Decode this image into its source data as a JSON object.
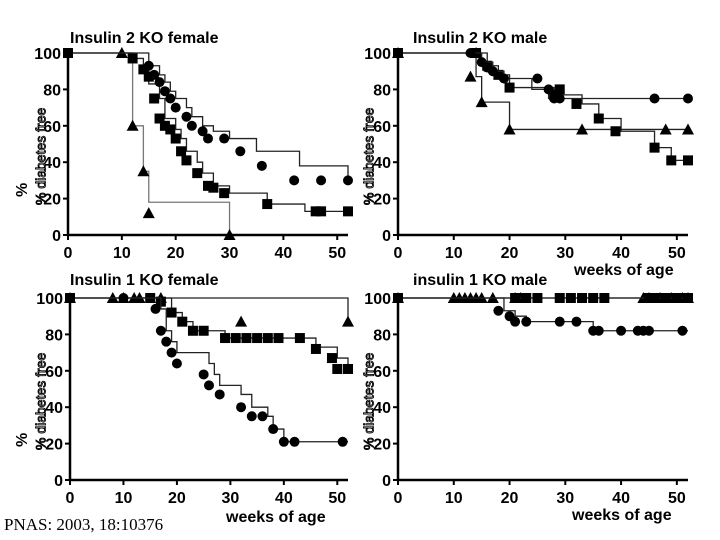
{
  "citation": "PNAS: 2003, 18:10376",
  "chart_data": [
    {
      "type": "line",
      "title": "Insulin 2 KO female",
      "xlabel": "",
      "ylabel": "%",
      "ylabel_rotated": "% diabetes free",
      "xlim": [
        0,
        52
      ],
      "ylim": [
        0,
        100
      ],
      "xticks": [
        0,
        10,
        20,
        30,
        40,
        50
      ],
      "yticks": [
        0,
        20,
        40,
        60,
        80,
        100
      ],
      "series": [
        {
          "marker": "triangle",
          "step_x": [
            0,
            10,
            12,
            14,
            15,
            30
          ],
          "step_y": [
            100,
            100,
            60,
            35,
            18,
            0
          ],
          "points": [
            [
              10,
              100
            ],
            [
              12,
              60
            ],
            [
              14,
              35
            ],
            [
              15,
              12
            ],
            [
              30,
              0
            ]
          ]
        },
        {
          "marker": "square",
          "step_x": [
            0,
            11,
            12,
            14,
            15,
            17,
            18,
            20,
            21,
            22,
            24,
            25,
            27,
            30,
            37,
            44,
            52
          ],
          "step_y": [
            100,
            100,
            97,
            91,
            83,
            75,
            64,
            58,
            53,
            46,
            40,
            34,
            27,
            23,
            17,
            13,
            13
          ],
          "points": [
            [
              0,
              100
            ],
            [
              12,
              97
            ],
            [
              14,
              91
            ],
            [
              15,
              87
            ],
            [
              16,
              75
            ],
            [
              17,
              64
            ],
            [
              18,
              60
            ],
            [
              19,
              58
            ],
            [
              20,
              53
            ],
            [
              21,
              46
            ],
            [
              22,
              41
            ],
            [
              24,
              34
            ],
            [
              26,
              27
            ],
            [
              27,
              26
            ],
            [
              29,
              23
            ],
            [
              37,
              17
            ],
            [
              46,
              13
            ],
            [
              47,
              13
            ],
            [
              52,
              13
            ]
          ]
        },
        {
          "marker": "circle",
          "step_x": [
            0,
            14,
            15,
            17,
            18,
            19,
            20,
            22,
            23,
            25,
            27,
            30,
            35,
            43,
            52
          ],
          "step_y": [
            100,
            100,
            93,
            88,
            84,
            79,
            75,
            70,
            65,
            60,
            57,
            53,
            46,
            38,
            30
          ],
          "points": [
            [
              0,
              100
            ],
            [
              15,
              93
            ],
            [
              16,
              88
            ],
            [
              17,
              84
            ],
            [
              18,
              79
            ],
            [
              19,
              75
            ],
            [
              20,
              70
            ],
            [
              22,
              65
            ],
            [
              23,
              60
            ],
            [
              25,
              57
            ],
            [
              26,
              53
            ],
            [
              29,
              53
            ],
            [
              32,
              46
            ],
            [
              36,
              38
            ],
            [
              42,
              30
            ],
            [
              47,
              30
            ],
            [
              52,
              30
            ]
          ]
        }
      ]
    },
    {
      "type": "line",
      "title": "Insulin 2 KO male",
      "xlabel": "weeks of age",
      "ylabel": "%",
      "ylabel_rotated": "% diabetes free",
      "xlim": [
        0,
        52
      ],
      "ylim": [
        0,
        100
      ],
      "xticks": [
        0,
        10,
        20,
        30,
        40,
        50
      ],
      "yticks": [
        0,
        20,
        40,
        60,
        80,
        100
      ],
      "series": [
        {
          "marker": "triangle",
          "step_x": [
            0,
            13,
            14,
            15,
            20,
            52
          ],
          "step_y": [
            100,
            100,
            87,
            73,
            58,
            58
          ],
          "points": [
            [
              0,
              100
            ],
            [
              13,
              87
            ],
            [
              14,
              100
            ],
            [
              15,
              73
            ],
            [
              20,
              58
            ],
            [
              33,
              58
            ],
            [
              48,
              58
            ],
            [
              52,
              58
            ]
          ]
        },
        {
          "marker": "square",
          "step_x": [
            0,
            13,
            16,
            18,
            20,
            28,
            33,
            36,
            40,
            46,
            49,
            52
          ],
          "step_y": [
            100,
            100,
            93,
            88,
            81,
            77,
            72,
            64,
            57,
            48,
            41,
            41
          ],
          "points": [
            [
              0,
              100
            ],
            [
              14,
              100
            ],
            [
              16,
              93
            ],
            [
              18,
              88
            ],
            [
              20,
              81
            ],
            [
              28,
              77
            ],
            [
              29,
              80
            ],
            [
              32,
              72
            ],
            [
              36,
              64
            ],
            [
              39,
              57
            ],
            [
              46,
              48
            ],
            [
              49,
              41
            ],
            [
              52,
              41
            ]
          ]
        },
        {
          "marker": "circle",
          "step_x": [
            0,
            14,
            15,
            17,
            19,
            24,
            27,
            30,
            52
          ],
          "step_y": [
            100,
            100,
            95,
            90,
            86,
            80,
            75,
            75,
            75
          ],
          "points": [
            [
              0,
              100
            ],
            [
              13,
              100
            ],
            [
              15,
              95
            ],
            [
              16,
              92
            ],
            [
              17,
              90
            ],
            [
              19,
              86
            ],
            [
              25,
              86
            ],
            [
              27,
              80
            ],
            [
              28,
              75
            ],
            [
              29,
              75
            ],
            [
              46,
              75
            ],
            [
              52,
              75
            ]
          ]
        }
      ]
    },
    {
      "type": "line",
      "title": "Insulin 1 KO female",
      "xlabel": "weeks of age",
      "ylabel": "%",
      "ylabel_rotated": "% diabetes free",
      "xlim": [
        0,
        52
      ],
      "ylim": [
        0,
        100
      ],
      "xticks": [
        0,
        10,
        20,
        30,
        40,
        50
      ],
      "yticks": [
        0,
        20,
        40,
        60,
        80,
        100
      ],
      "series": [
        {
          "marker": "triangle",
          "step_x": [
            0,
            32,
            52
          ],
          "step_y": [
            100,
            100,
            87
          ],
          "points": [
            [
              0,
              100
            ],
            [
              8,
              100
            ],
            [
              10,
              100
            ],
            [
              12,
              100
            ],
            [
              13,
              100
            ],
            [
              17,
              100
            ],
            [
              32,
              87
            ],
            [
              52,
              87
            ]
          ]
        },
        {
          "marker": "square",
          "step_x": [
            0,
            17,
            19,
            21,
            23,
            29,
            43,
            46,
            50,
            52
          ],
          "step_y": [
            100,
            100,
            92,
            87,
            82,
            78,
            78,
            73,
            67,
            61
          ],
          "points": [
            [
              0,
              100
            ],
            [
              15,
              100
            ],
            [
              17,
              98
            ],
            [
              19,
              92
            ],
            [
              21,
              87
            ],
            [
              23,
              82
            ],
            [
              25,
              82
            ],
            [
              29,
              78
            ],
            [
              31,
              78
            ],
            [
              33,
              78
            ],
            [
              35,
              78
            ],
            [
              37,
              78
            ],
            [
              39,
              78
            ],
            [
              43,
              78
            ],
            [
              46,
              72
            ],
            [
              49,
              67
            ],
            [
              50,
              61
            ],
            [
              52,
              61
            ]
          ]
        },
        {
          "marker": "circle",
          "step_x": [
            0,
            16,
            17,
            18,
            19,
            20,
            26,
            27,
            28,
            32,
            34,
            37,
            38,
            40,
            52
          ],
          "step_y": [
            100,
            100,
            94,
            82,
            76,
            70,
            64,
            58,
            52,
            47,
            40,
            35,
            28,
            21,
            21
          ],
          "points": [
            [
              0,
              100
            ],
            [
              10,
              100
            ],
            [
              16,
              94
            ],
            [
              17,
              82
            ],
            [
              18,
              76
            ],
            [
              19,
              70
            ],
            [
              20,
              64
            ],
            [
              25,
              58
            ],
            [
              26,
              52
            ],
            [
              28,
              47
            ],
            [
              32,
              40
            ],
            [
              34,
              35
            ],
            [
              36,
              35
            ],
            [
              38,
              28
            ],
            [
              40,
              21
            ],
            [
              42,
              21
            ],
            [
              51,
              21
            ]
          ]
        }
      ]
    },
    {
      "type": "line",
      "title": "insulin 1 KO male",
      "xlabel": "weeks of age",
      "ylabel": "%",
      "ylabel_rotated": "% diabetes free",
      "xlim": [
        0,
        52
      ],
      "ylim": [
        0,
        100
      ],
      "xticks": [
        0,
        10,
        20,
        30,
        40,
        50
      ],
      "yticks": [
        0,
        20,
        40,
        60,
        80,
        100
      ],
      "series": [
        {
          "marker": "triangle",
          "step_x": [
            0,
            52
          ],
          "step_y": [
            100,
            100
          ],
          "points": [
            [
              0,
              100
            ],
            [
              10,
              100
            ],
            [
              11,
              100
            ],
            [
              12,
              100
            ],
            [
              13,
              100
            ],
            [
              14,
              100
            ],
            [
              15,
              100
            ],
            [
              17,
              100
            ],
            [
              21,
              100
            ],
            [
              22,
              100
            ],
            [
              44,
              100
            ],
            [
              45,
              100
            ],
            [
              47,
              100
            ],
            [
              49,
              100
            ],
            [
              51,
              100
            ],
            [
              52,
              100
            ]
          ]
        },
        {
          "marker": "square",
          "step_x": [
            0,
            52
          ],
          "step_y": [
            100,
            100
          ],
          "points": [
            [
              0,
              100
            ],
            [
              21,
              100
            ],
            [
              23,
              100
            ],
            [
              25,
              100
            ],
            [
              29,
              100
            ],
            [
              31,
              100
            ],
            [
              33,
              100
            ],
            [
              35,
              100
            ],
            [
              37,
              100
            ],
            [
              45,
              100
            ],
            [
              46,
              100
            ],
            [
              48,
              100
            ],
            [
              50,
              100
            ],
            [
              52,
              100
            ]
          ]
        },
        {
          "marker": "circle",
          "step_x": [
            0,
            17,
            19,
            21,
            23,
            30,
            35,
            52
          ],
          "step_y": [
            100,
            100,
            93,
            90,
            87,
            87,
            82,
            82
          ],
          "points": [
            [
              0,
              100
            ],
            [
              18,
              93
            ],
            [
              20,
              90
            ],
            [
              21,
              87
            ],
            [
              23,
              87
            ],
            [
              29,
              87
            ],
            [
              32,
              87
            ],
            [
              35,
              82
            ],
            [
              36,
              82
            ],
            [
              40,
              82
            ],
            [
              43,
              82
            ],
            [
              44,
              82
            ],
            [
              45,
              82
            ],
            [
              51,
              82
            ]
          ]
        }
      ]
    }
  ]
}
